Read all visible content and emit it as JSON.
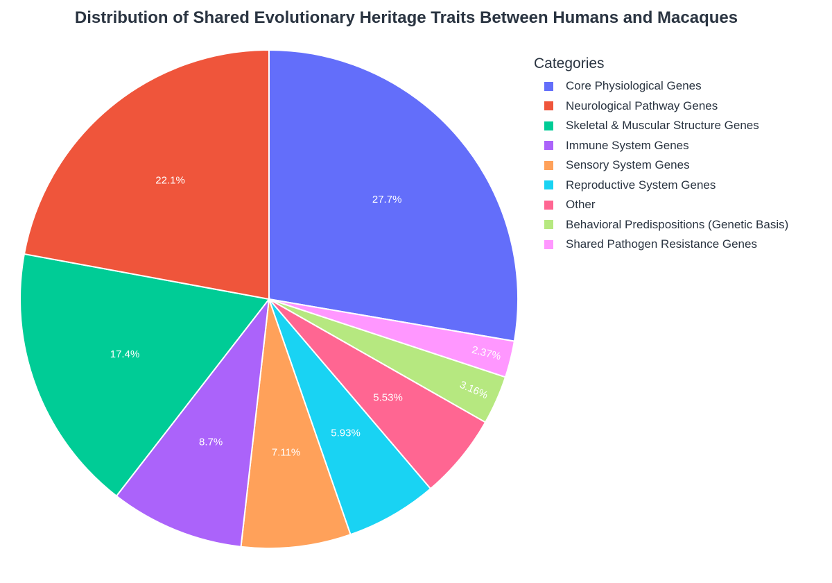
{
  "chart_data": {
    "type": "pie",
    "title": "Distribution of Shared Evolutionary Heritage Traits Between Humans and Macaques",
    "legend_title": "Categories",
    "legend_position": "right",
    "categories": [
      "Core Physiological Genes",
      "Neurological Pathway Genes",
      "Skeletal & Muscular Structure Genes",
      "Immune System Genes",
      "Sensory System Genes",
      "Reproductive System Genes",
      "Other",
      "Behavioral Predispositions (Genetic Basis)",
      "Shared Pathogen Resistance Genes"
    ],
    "values": [
      27.7,
      22.1,
      17.4,
      8.7,
      7.11,
      5.93,
      5.53,
      3.16,
      2.37
    ],
    "labels": [
      "27.7%",
      "22.1%",
      "17.4%",
      "8.7%",
      "7.11%",
      "5.93%",
      "5.53%",
      "3.16%",
      "2.37%"
    ],
    "colors": [
      "#636efa",
      "#ef553b",
      "#00cc96",
      "#ab63fa",
      "#ffa15a",
      "#19d3f3",
      "#ff6692",
      "#b6e880",
      "#ff97ff"
    ],
    "direction": "clockwise",
    "start_angle": "top",
    "legend_order": [
      0,
      1,
      2,
      3,
      4,
      5,
      6,
      7,
      8
    ],
    "slice_order": [
      0,
      8,
      7,
      6,
      5,
      4,
      3,
      2,
      1
    ]
  }
}
